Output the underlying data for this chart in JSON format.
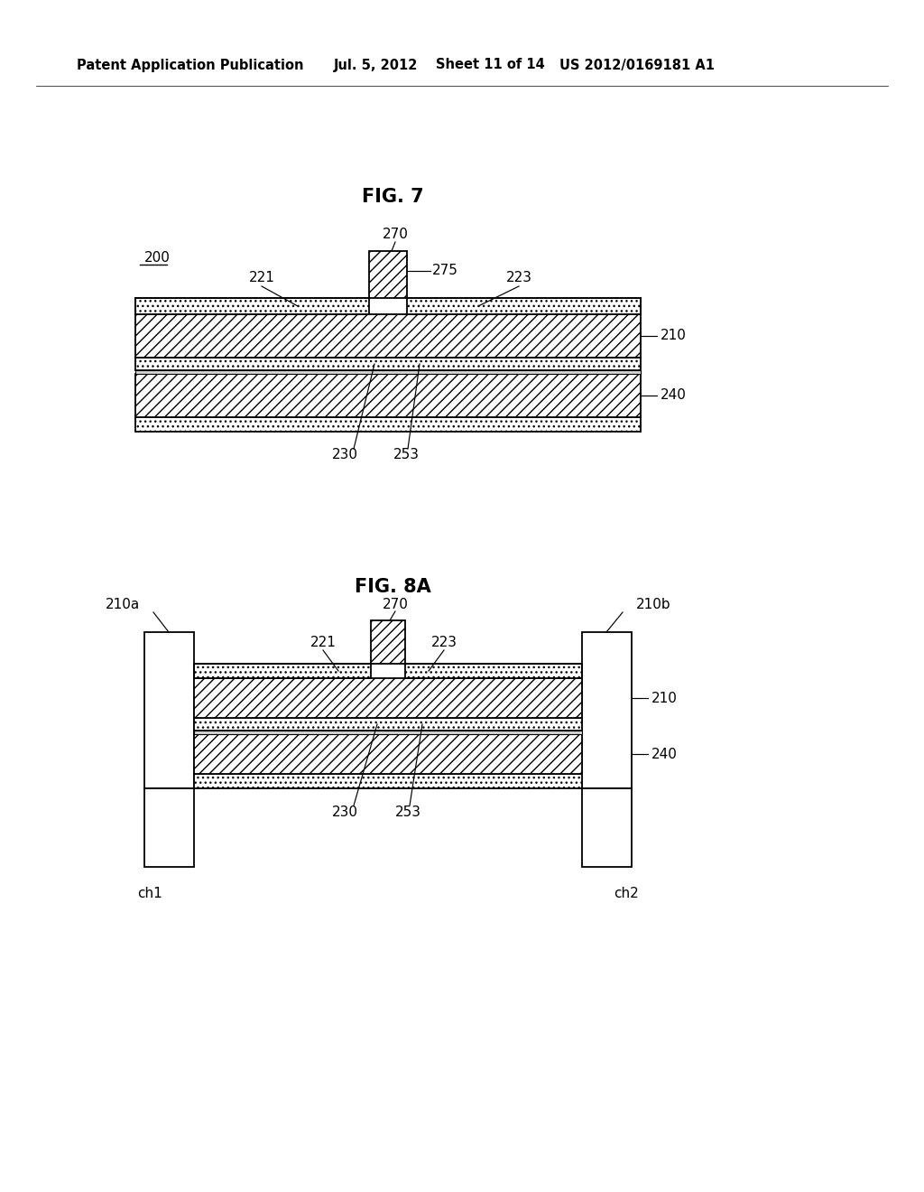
{
  "bg_color": "#ffffff",
  "header_text": "Patent Application Publication",
  "header_date": "Jul. 5, 2012",
  "header_sheet": "Sheet 11 of 14",
  "header_patent": "US 2012/0169181 A1",
  "fig7_title": "FIG. 7",
  "fig8a_title": "FIG. 8A",
  "label_200": "200",
  "label_270_fig7": "270",
  "label_275_fig7": "275",
  "label_221_fig7": "221",
  "label_223_fig7": "223",
  "label_210_fig7": "210",
  "label_240_fig7": "240",
  "label_230_fig7": "230",
  "label_253_fig7": "253",
  "label_270_fig8a": "270",
  "label_221_fig8a": "221",
  "label_223_fig8a": "223",
  "label_210a": "210a",
  "label_210b": "210b",
  "label_210_fig8a": "210",
  "label_240_fig8a": "240",
  "label_230_fig8a": "230",
  "label_253_fig8a": "253",
  "label_ch1": "ch1",
  "label_ch2": "ch2"
}
